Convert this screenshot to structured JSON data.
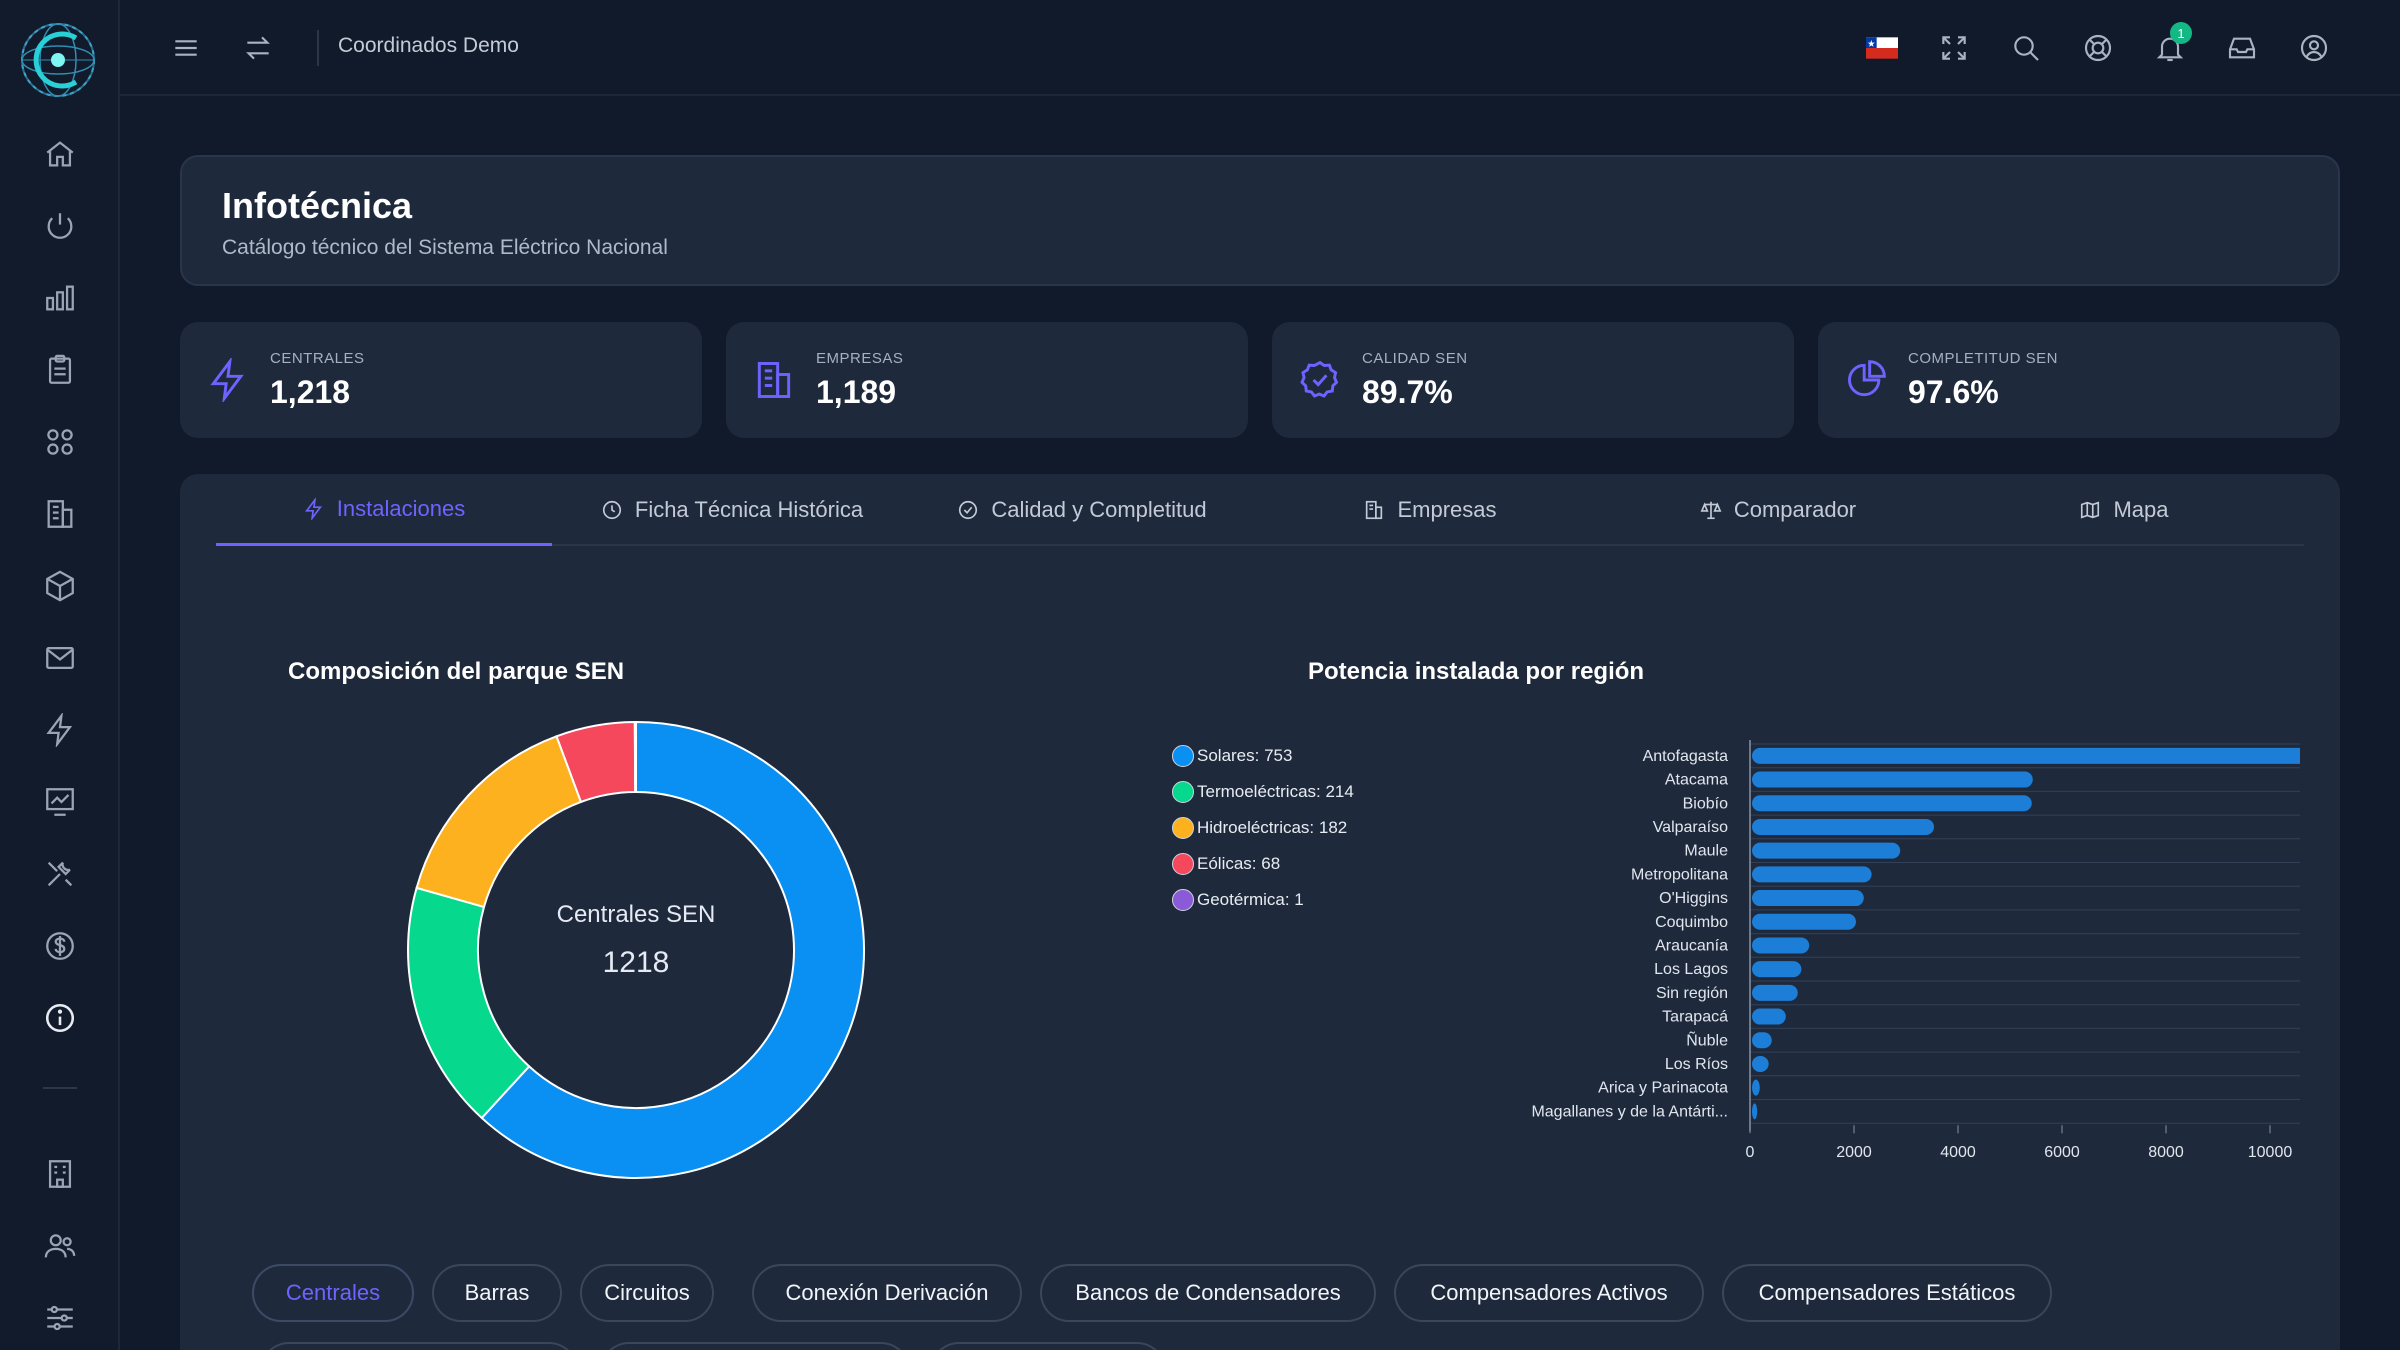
{
  "topbar": {
    "title": "Coordinados Demo",
    "notification_count": "1"
  },
  "sidebar": {
    "items": [
      {
        "icon": "home-icon"
      },
      {
        "icon": "power-icon"
      },
      {
        "icon": "bar-chart-icon"
      },
      {
        "icon": "clipboard-icon"
      },
      {
        "icon": "apps-grid-icon"
      },
      {
        "icon": "building-icon"
      },
      {
        "icon": "cube-icon"
      },
      {
        "icon": "mail-icon"
      },
      {
        "icon": "bolt-icon"
      },
      {
        "icon": "chart-line-icon"
      },
      {
        "icon": "tools-icon"
      },
      {
        "icon": "dollar-icon"
      },
      {
        "icon": "info-icon",
        "active": true
      }
    ],
    "bottom_items": [
      {
        "icon": "building-icon"
      },
      {
        "icon": "users-icon"
      },
      {
        "icon": "sliders-icon"
      }
    ]
  },
  "header": {
    "title": "Infotécnica",
    "subtitle": "Catálogo técnico del Sistema Eléctrico Nacional"
  },
  "stats": [
    {
      "label": "CENTRALES",
      "value": "1,218",
      "icon": "bolt-icon"
    },
    {
      "label": "EMPRESAS",
      "value": "1,189",
      "icon": "building-icon"
    },
    {
      "label": "CALIDAD SEN",
      "value": "89.7%",
      "icon": "check-badge-icon"
    },
    {
      "label": "COMPLETITUD SEN",
      "value": "97.6%",
      "icon": "pie-icon"
    }
  ],
  "tabs": [
    {
      "label": "Instalaciones",
      "active": true
    },
    {
      "label": "Ficha Técnica Histórica"
    },
    {
      "label": "Calidad y Completitud"
    },
    {
      "label": "Empresas"
    },
    {
      "label": "Comparador"
    },
    {
      "label": "Mapa"
    }
  ],
  "pills": [
    "Centrales",
    "Barras",
    "Circuitos",
    "Conexión Derivación",
    "Bancos de Condensadores",
    "Compensadores Activos",
    "Compensadores Estáticos"
  ],
  "colors": {
    "accent": "#6f63ff",
    "solar": "#0a8ff2",
    "thermo": "#06d98e",
    "hydro": "#fdb11f",
    "wind": "#f5485d",
    "geo": "#8b5ad9",
    "bar": "#1c7ed6"
  },
  "chart_data": [
    {
      "type": "pie",
      "title": "Composición del parque SEN",
      "center_label": "Centrales SEN",
      "center_value": "1218",
      "slices": [
        {
          "label": "Solares",
          "value": 753,
          "legend": "Solares: 753",
          "color": "#0a8ff2"
        },
        {
          "label": "Termoeléctricas",
          "value": 214,
          "legend": "Termoeléctricas: 214",
          "color": "#06d98e"
        },
        {
          "label": "Hidroeléctricas",
          "value": 182,
          "legend": "Hidroeléctricas: 182",
          "color": "#fdb11f"
        },
        {
          "label": "Eólicas",
          "value": 68,
          "legend": "Eólicas: 68",
          "color": "#f5485d"
        },
        {
          "label": "Geotérmica",
          "value": 1,
          "legend": "Geotérmica: 1",
          "color": "#8b5ad9"
        }
      ],
      "legend_position": "right"
    },
    {
      "type": "bar",
      "orientation": "horizontal",
      "title": "Potencia instalada por región",
      "categories": [
        "Antofagasta",
        "Atacama",
        "Biobío",
        "Valparaíso",
        "Maule",
        "Metropolitana",
        "O'Higgins",
        "Coquimbo",
        "Araucanía",
        "Los Lagos",
        "Sin región",
        "Tarapacá",
        "Ñuble",
        "Los Ríos",
        "Arica y Parinacota",
        "Magallanes y de la Antárti..."
      ],
      "values": [
        11150,
        5400,
        5380,
        3500,
        2850,
        2300,
        2150,
        2000,
        1100,
        950,
        880,
        650,
        380,
        320,
        150,
        100
      ],
      "xlim": [
        0,
        12000
      ],
      "xticks": [
        "0",
        "2000",
        "4000",
        "6000",
        "8000",
        "10000",
        "12000"
      ],
      "grid": true
    }
  ]
}
